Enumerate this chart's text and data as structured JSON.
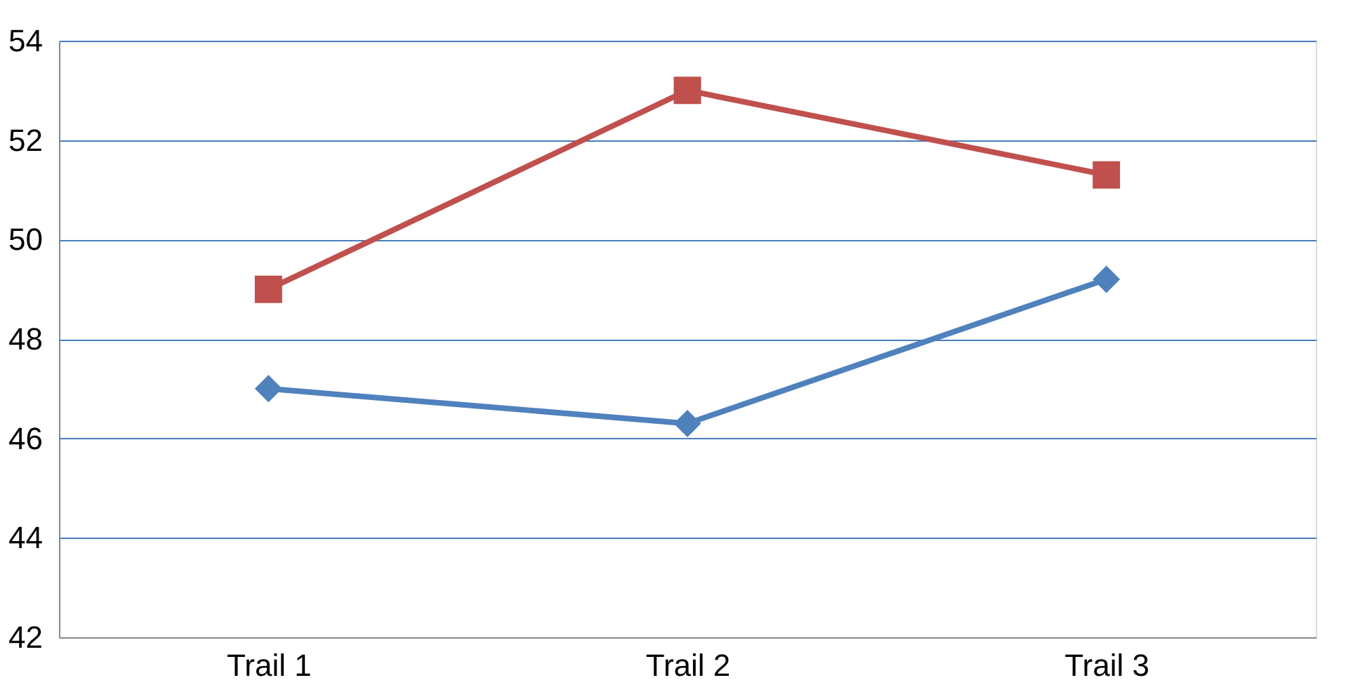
{
  "chart_data": {
    "type": "line",
    "categories": [
      "Trail 1",
      "Trail 2",
      "Trail 3"
    ],
    "series": [
      {
        "color": "#4f81bd",
        "values": [
          47,
          46.3,
          49.2
        ],
        "marker": "diamond"
      },
      {
        "color": "#c0504d",
        "values": [
          49,
          53,
          51.3
        ],
        "marker": "square"
      }
    ],
    "ylim": [
      42,
      54
    ],
    "yticks": [
      42,
      44,
      46,
      48,
      50,
      52,
      54
    ],
    "grid": "y"
  }
}
